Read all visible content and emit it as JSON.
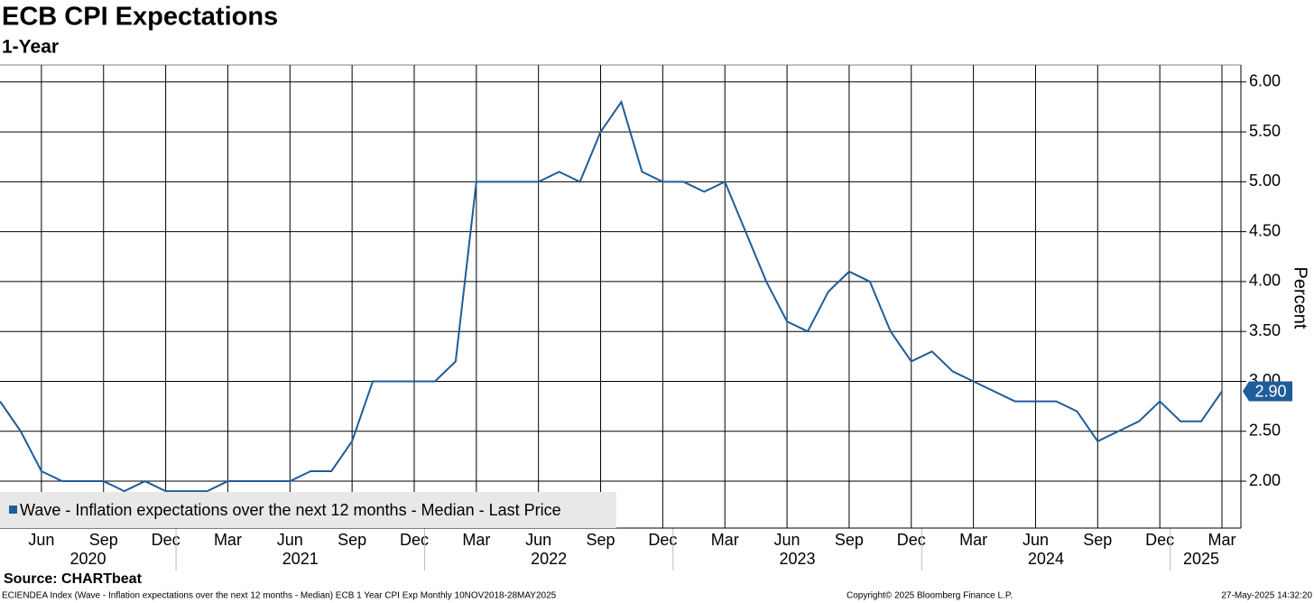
{
  "chart_data": {
    "type": "line",
    "title": "ECB CPI Expectations",
    "subtitle": "1-Year",
    "y_axis_label": "Percent",
    "source": "Source: CHARTbeat",
    "footer_left": "ECIENDEA Index (Wave - Inflation expectations over the next 12 months - Median) ECB 1 Year CPI Exp  Monthly 10NOV2018-28MAY2025",
    "footer_center": "Copyright© 2025 Bloomberg Finance L.P.",
    "footer_right": "27-May-2025 14:32:20",
    "categories": [
      null,
      null,
      "Jun",
      null,
      null,
      "Sep",
      null,
      null,
      "Dec",
      null,
      null,
      "Mar",
      null,
      null,
      "Jun",
      null,
      null,
      "Sep",
      null,
      null,
      "Dec",
      null,
      null,
      "Mar",
      null,
      null,
      "Jun",
      null,
      null,
      "Sep",
      null,
      null,
      "Dec",
      null,
      null,
      "Mar",
      null,
      null,
      "Jun",
      null,
      null,
      "Sep",
      null,
      null,
      "Dec",
      null,
      null,
      "Mar",
      null,
      null,
      "Jun",
      null,
      null,
      "Sep",
      null,
      null,
      "Dec",
      null,
      null,
      "Mar"
    ],
    "years": [
      "2020",
      "2021",
      "2022",
      "2023",
      "2024",
      "2025"
    ],
    "series": [
      {
        "name": "Wave - Inflation expectations over the next 12 months - Median - Last Price",
        "color": "#1f5c99",
        "values": [
          2.8,
          2.5,
          2.1,
          2.0,
          2.0,
          2.0,
          1.9,
          2.0,
          1.9,
          1.9,
          1.9,
          2.0,
          2.0,
          2.0,
          2.0,
          2.1,
          2.1,
          2.4,
          3.0,
          3.0,
          3.0,
          3.0,
          3.2,
          5.0,
          5.0,
          5.0,
          5.0,
          5.1,
          5.0,
          5.5,
          5.8,
          5.1,
          5.0,
          5.0,
          4.9,
          5.0,
          4.5,
          4.0,
          3.6,
          3.5,
          3.9,
          4.1,
          4.0,
          3.5,
          3.2,
          3.3,
          3.1,
          3.0,
          2.9,
          2.8,
          2.8,
          2.8,
          2.7,
          2.4,
          2.5,
          2.6,
          2.8,
          2.6,
          2.6,
          2.9
        ],
        "value_labels": [
          null,
          null,
          null,
          null,
          null,
          null,
          null,
          null,
          null,
          null,
          null,
          null,
          null,
          null,
          null,
          null,
          null,
          null,
          null,
          null,
          null,
          null,
          null,
          null,
          null,
          null,
          null,
          null,
          null,
          null,
          null,
          null,
          null,
          null,
          null,
          null,
          null,
          null,
          null,
          null,
          null,
          null,
          null,
          null,
          null,
          null,
          null,
          null,
          null,
          null,
          null,
          null,
          null,
          null,
          null,
          null,
          null,
          null,
          null,
          "2.90"
        ]
      }
    ],
    "ylim": [
      1.53,
      6.17
    ],
    "yticks": [
      {
        "value": 2,
        "label": "2.00"
      },
      {
        "value": 2.5,
        "label": "2.50"
      },
      {
        "value": 3,
        "label": "3.00"
      },
      {
        "value": 3.5,
        "label": "3.50"
      },
      {
        "value": 4,
        "label": "4.00"
      },
      {
        "value": 4.5,
        "label": "4.50"
      },
      {
        "value": 5,
        "label": "5.00"
      },
      {
        "value": 5.5,
        "label": "5.50"
      },
      {
        "value": 6,
        "label": "6.00"
      }
    ],
    "grid": true,
    "legend": "bottom-left"
  }
}
